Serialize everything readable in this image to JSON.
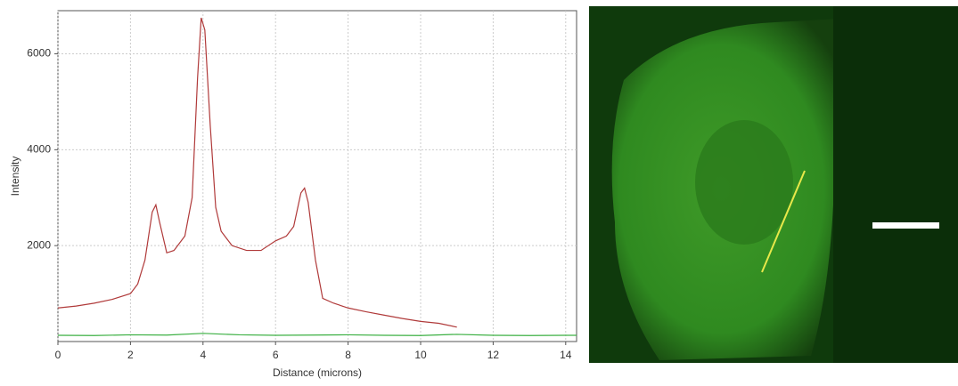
{
  "chart_data": {
    "type": "line",
    "x_label": "Distance (microns)",
    "y_label": "Intensity",
    "xlim": [
      0,
      14.3
    ],
    "ylim": [
      0,
      6900
    ],
    "xticks": [
      0,
      2,
      4,
      6,
      8,
      10,
      12,
      14
    ],
    "yticks": [
      2000,
      4000,
      6000
    ],
    "grid": true,
    "series": [
      {
        "color": "#b03a3a",
        "x": [
          0,
          0.5,
          1,
          1.5,
          2,
          2.2,
          2.4,
          2.6,
          2.7,
          2.8,
          3.0,
          3.2,
          3.5,
          3.7,
          3.85,
          3.95,
          4.05,
          4.2,
          4.35,
          4.5,
          4.8,
          5.2,
          5.6,
          6.0,
          6.3,
          6.5,
          6.7,
          6.8,
          6.9,
          7.1,
          7.3,
          7.6,
          8,
          8.5,
          9,
          9.5,
          10,
          10.5,
          11
        ],
        "values": [
          700,
          740,
          800,
          880,
          1000,
          1200,
          1700,
          2700,
          2850,
          2500,
          1850,
          1900,
          2200,
          3000,
          5500,
          6750,
          6500,
          4500,
          2800,
          2300,
          2000,
          1900,
          1900,
          2100,
          2200,
          2400,
          3100,
          3200,
          2900,
          1700,
          900,
          800,
          700,
          620,
          550,
          480,
          420,
          380,
          300
        ]
      },
      {
        "color": "#3cb043",
        "x": [
          0,
          1,
          2,
          3,
          4,
          5,
          6,
          7,
          8,
          9,
          10,
          11,
          12,
          13,
          14,
          14.3
        ],
        "values": [
          130,
          125,
          140,
          135,
          170,
          140,
          130,
          135,
          140,
          130,
          125,
          150,
          130,
          125,
          130,
          130
        ]
      }
    ]
  }
}
